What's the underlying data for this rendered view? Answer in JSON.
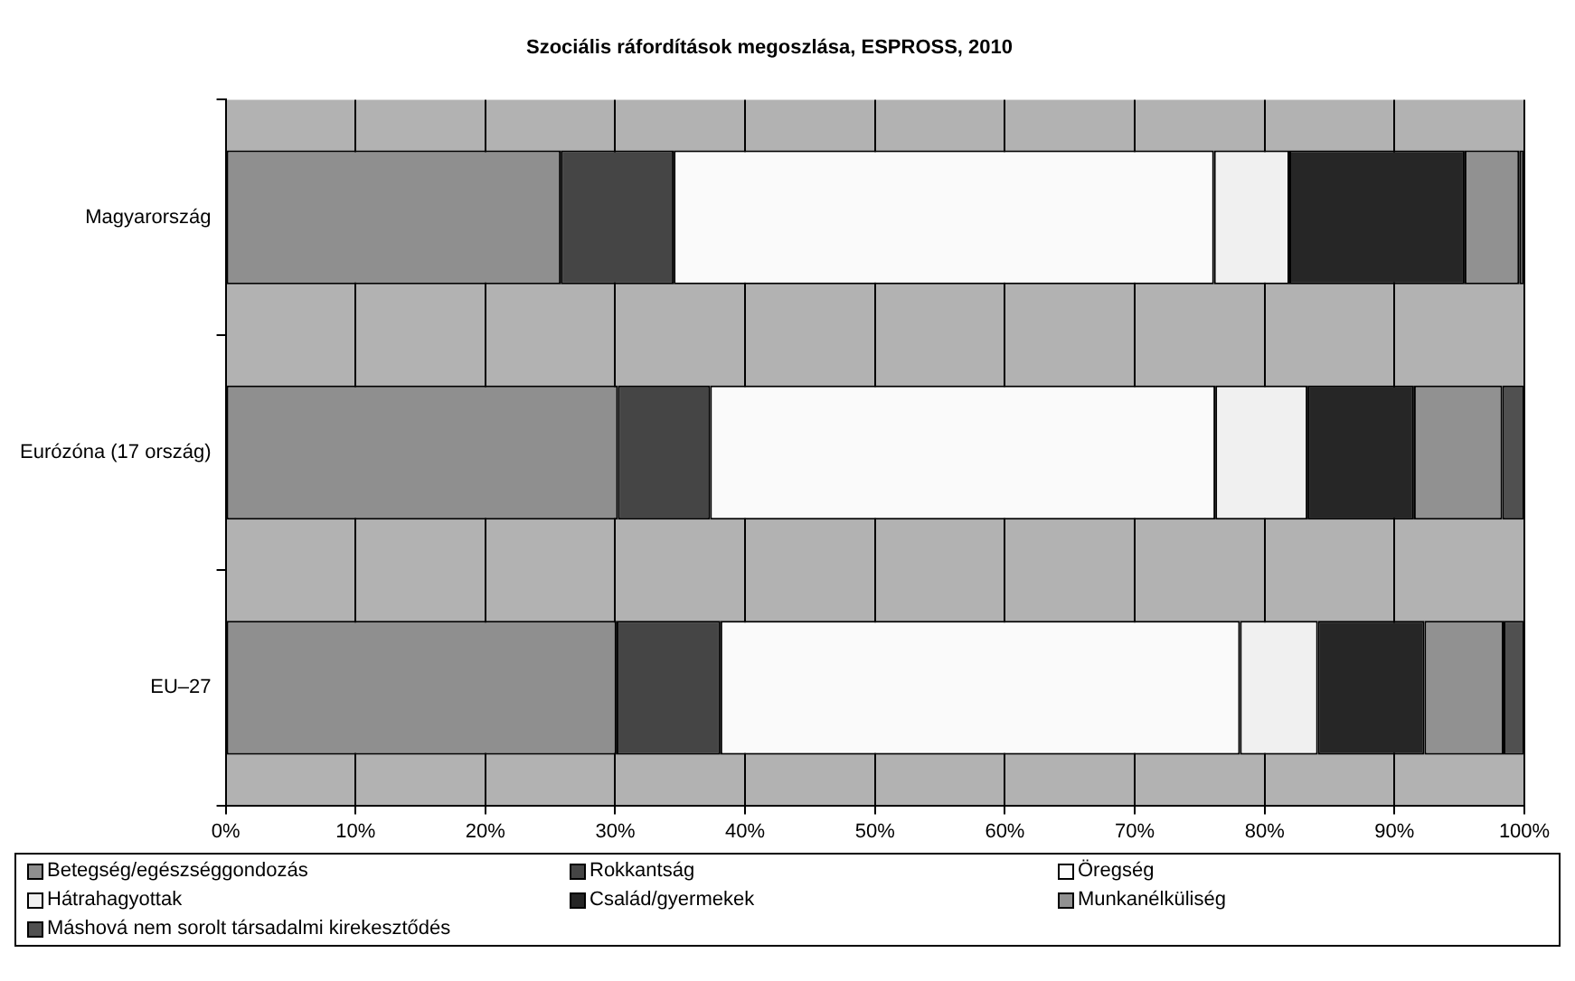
{
  "chart_data": {
    "type": "bar",
    "orientation": "horizontal",
    "stacked": true,
    "title": "Szociális ráfordítások megoszlása, ESPROSS, 2010",
    "categories": [
      "Magyarország",
      "Eurózóna (17 ország)",
      "EU–27"
    ],
    "series": [
      {
        "name": "Betegség/egészséggondozás",
        "color": "#8f8f8f",
        "values": [
          25.8,
          30.2,
          30.1
        ]
      },
      {
        "name": "Rokkantság",
        "color": "#454545",
        "values": [
          8.7,
          7.1,
          8.0
        ]
      },
      {
        "name": "Öregség",
        "color": "#fafafa",
        "values": [
          41.6,
          38.9,
          40.0
        ]
      },
      {
        "name": "Hátrahagyottak",
        "color": "#f0f0f0",
        "values": [
          5.8,
          7.1,
          6.0
        ]
      },
      {
        "name": "Család/gyermekek",
        "color": "#262626",
        "values": [
          13.5,
          8.2,
          8.2
        ]
      },
      {
        "name": "Munkanélküliség",
        "color": "#919191",
        "values": [
          4.2,
          6.8,
          6.1
        ]
      },
      {
        "name": "Máshová nem sorolt társadalmi kirekesztődés",
        "color": "#505050",
        "values": [
          0.4,
          1.7,
          1.6
        ]
      }
    ],
    "xlim": [
      0,
      100
    ],
    "xticks": [
      {
        "value": 0,
        "label": "0%"
      },
      {
        "value": 10,
        "label": "10%"
      },
      {
        "value": 20,
        "label": "20%"
      },
      {
        "value": 30,
        "label": "30%"
      },
      {
        "value": 40,
        "label": "40%"
      },
      {
        "value": 50,
        "label": "50%"
      },
      {
        "value": 60,
        "label": "60%"
      },
      {
        "value": 70,
        "label": "70%"
      },
      {
        "value": 80,
        "label": "80%"
      },
      {
        "value": 90,
        "label": "90%"
      },
      {
        "value": 100,
        "label": "100%"
      }
    ],
    "grid": "x",
    "legend": "bottom"
  }
}
